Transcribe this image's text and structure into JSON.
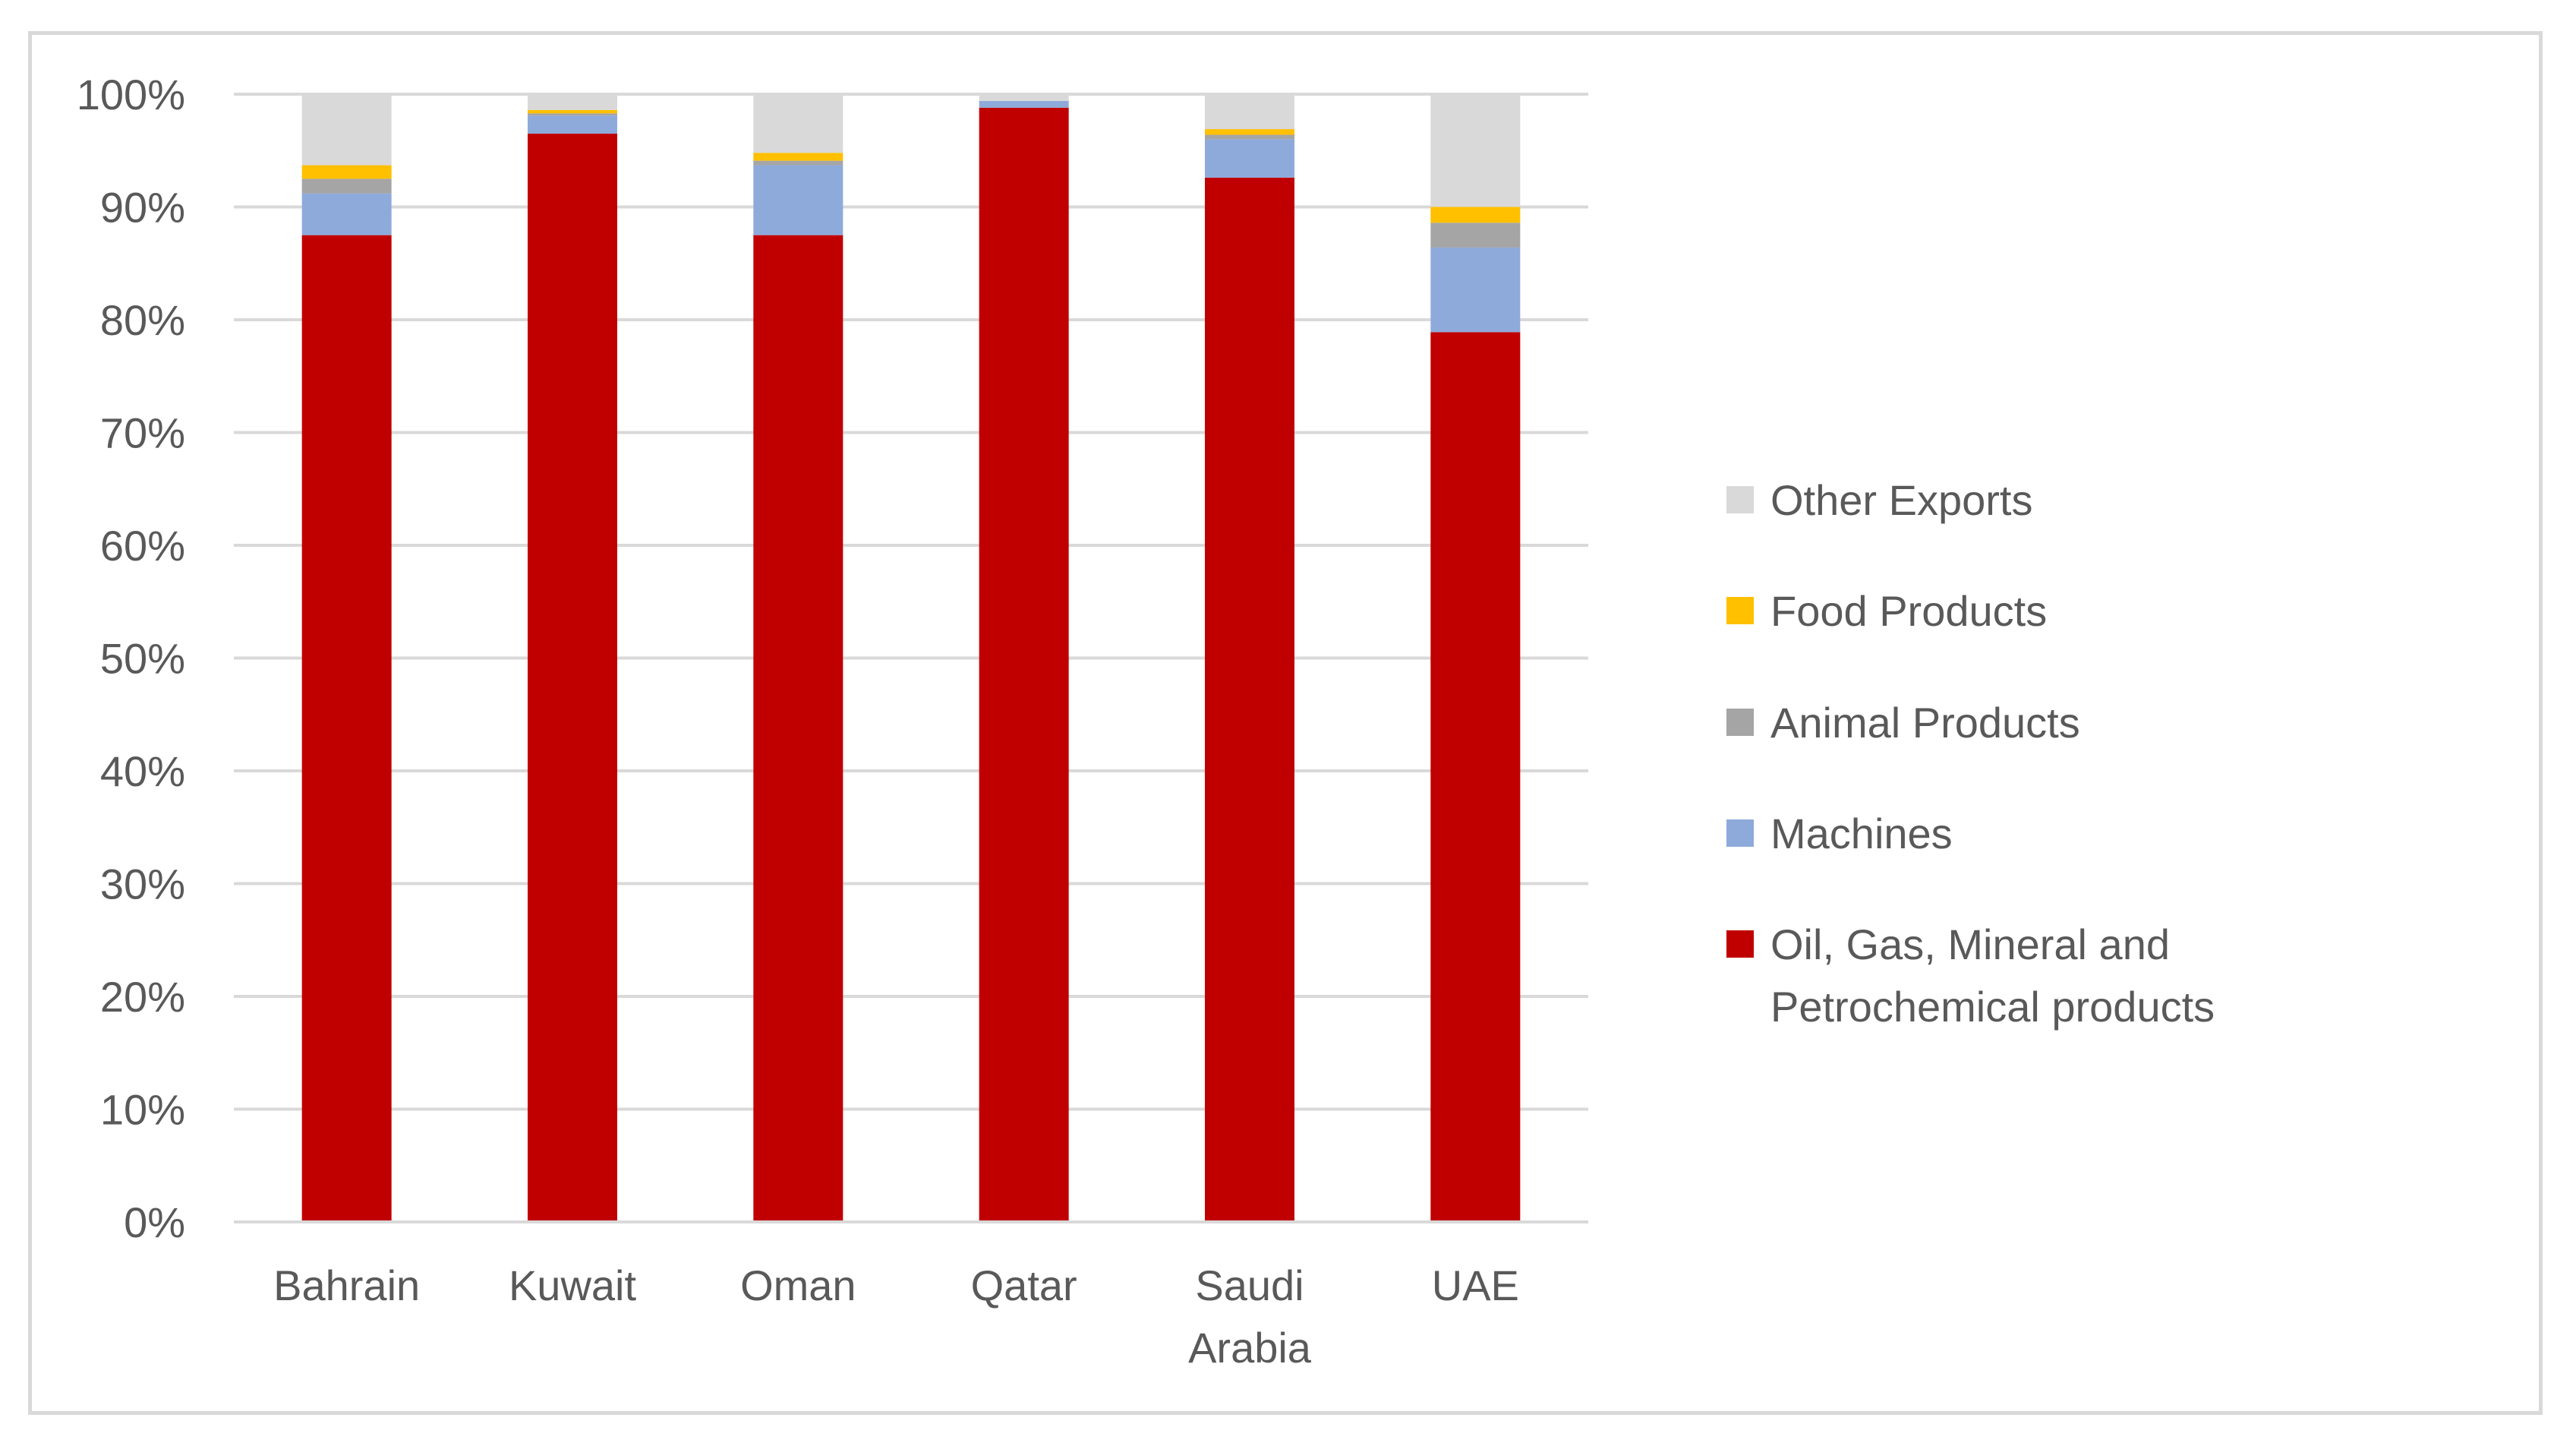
{
  "chart_data": {
    "type": "bar",
    "stacked": true,
    "title": "",
    "xlabel": "",
    "ylabel": "",
    "ylim": [
      0,
      100
    ],
    "y_tick_step": 10,
    "y_tick_format": "percent",
    "grid": true,
    "legend_position": "right",
    "categories": [
      [
        "Bahrain"
      ],
      [
        "Kuwait"
      ],
      [
        "Oman"
      ],
      [
        "Qatar"
      ],
      [
        "Saudi",
        "Arabia"
      ],
      [
        "UAE"
      ]
    ],
    "series": [
      {
        "name": "Oil, Gas, Mineral and Petrochemical products",
        "name_lines": [
          "Oil, Gas, Mineral and",
          "Petrochemical products"
        ],
        "color": "#c00000",
        "values": [
          87.5,
          96.5,
          87.5,
          98.8,
          92.6,
          78.9
        ]
      },
      {
        "name": "Machines",
        "name_lines": [
          "Machines"
        ],
        "color": "#8eaadb",
        "values": [
          3.7,
          1.6,
          6.2,
          0.6,
          3.4,
          7.5
        ]
      },
      {
        "name": "Animal Products",
        "name_lines": [
          "Animal Products"
        ],
        "color": "#a5a5a5",
        "values": [
          1.3,
          0.2,
          0.4,
          0.0,
          0.4,
          2.2
        ]
      },
      {
        "name": "Food Products",
        "name_lines": [
          "Food Products"
        ],
        "color": "#ffc000",
        "values": [
          1.2,
          0.3,
          0.7,
          0.0,
          0.5,
          1.4
        ]
      },
      {
        "name": "Other Exports",
        "name_lines": [
          "Other Exports"
        ],
        "color": "#d9d9d9",
        "values": [
          6.3,
          1.4,
          5.2,
          0.6,
          3.1,
          10.0
        ]
      }
    ]
  }
}
